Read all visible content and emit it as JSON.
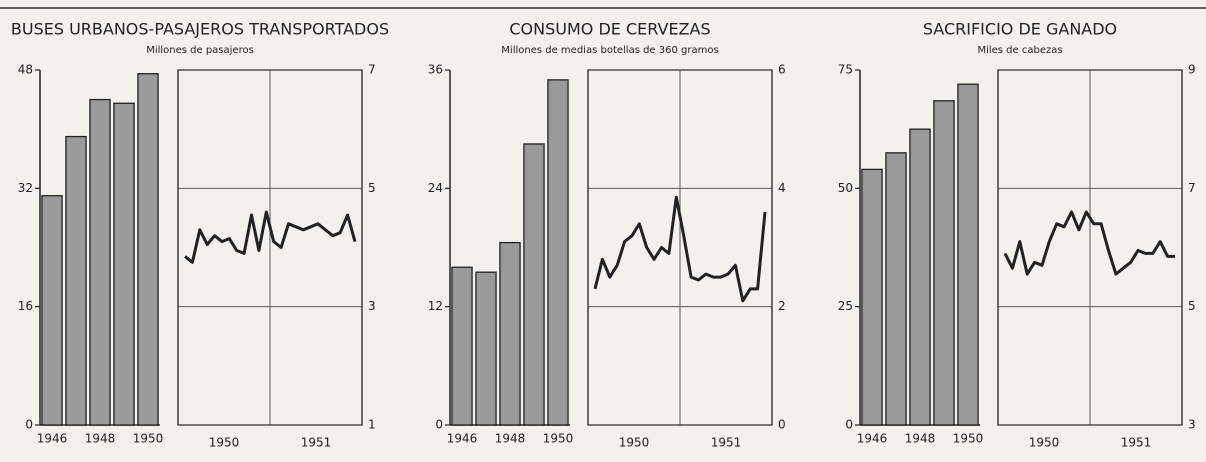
{
  "chart_data": [
    {
      "type": "bar",
      "title": "BUSES URBANOS-PASAJEROS TRANSPORTADOS",
      "subtitle": "Millones de pasajeros",
      "categories": [
        "1946",
        null,
        "1948",
        null,
        "1950"
      ],
      "values": [
        31,
        39,
        44,
        43.5,
        47.5
      ],
      "ylim": [
        0,
        48
      ],
      "yticks": [
        0,
        16,
        32,
        48
      ],
      "color": "#9a9a98",
      "grid": false
    },
    {
      "type": "line",
      "x_groups": [
        "1950",
        "1951"
      ],
      "categories": [
        null,
        null,
        null,
        null,
        null,
        null,
        null,
        null,
        null,
        null,
        null,
        null,
        null,
        null,
        null,
        null,
        null,
        null,
        null,
        null,
        null,
        null,
        null,
        null
      ],
      "values": [
        3.85,
        3.75,
        4.3,
        4.05,
        4.2,
        4.1,
        4.15,
        3.95,
        3.9,
        4.55,
        3.95,
        4.6,
        4.1,
        4.0,
        4.4,
        4.35,
        4.3,
        4.35,
        4.4,
        4.3,
        4.2,
        4.25,
        4.55,
        4.1
      ],
      "y2lim": [
        1,
        7
      ],
      "y2ticks": [
        1,
        3,
        5,
        7
      ],
      "color": "#222222",
      "grid": true
    },
    {
      "type": "bar",
      "title": "CONSUMO DE CERVEZAS",
      "subtitle": "Millones de medias botellas de 360 gramos",
      "categories": [
        "1946",
        null,
        "1948",
        null,
        "1950"
      ],
      "values": [
        16,
        15.5,
        18.5,
        28.5,
        35
      ],
      "ylim": [
        0,
        36
      ],
      "yticks": [
        0,
        12,
        24,
        36
      ],
      "color": "#9a9a98",
      "grid": false
    },
    {
      "type": "line",
      "x_groups": [
        "1950",
        "1951"
      ],
      "categories": [
        null,
        null,
        null,
        null,
        null,
        null,
        null,
        null,
        null,
        null,
        null,
        null,
        null,
        null,
        null,
        null,
        null,
        null,
        null,
        null,
        null,
        null,
        null,
        null
      ],
      "values": [
        2.3,
        2.8,
        2.5,
        2.7,
        3.1,
        3.2,
        3.4,
        3.0,
        2.8,
        3.0,
        2.9,
        3.85,
        3.2,
        2.5,
        2.45,
        2.55,
        2.5,
        2.5,
        2.55,
        2.7,
        2.1,
        2.3,
        2.3,
        3.6
      ],
      "y2lim": [
        0,
        6
      ],
      "y2ticks": [
        0,
        2,
        4,
        6
      ],
      "color": "#222222",
      "grid": true
    },
    {
      "type": "bar",
      "title": "SACRIFICIO DE GANADO",
      "subtitle": "Miles de cabezas",
      "categories": [
        "1946",
        null,
        "1948",
        null,
        "1950"
      ],
      "values": [
        54,
        57.5,
        62.5,
        68.5,
        72
      ],
      "ylim": [
        0,
        75
      ],
      "yticks": [
        0,
        25,
        50,
        75
      ],
      "color": "#9a9a98",
      "grid": false
    },
    {
      "type": "line",
      "x_groups": [
        "1950",
        "1951"
      ],
      "categories": [
        null,
        null,
        null,
        null,
        null,
        null,
        null,
        null,
        null,
        null,
        null,
        null,
        null,
        null,
        null,
        null,
        null,
        null,
        null,
        null,
        null,
        null,
        null,
        null
      ],
      "values": [
        5.9,
        5.65,
        6.1,
        5.55,
        5.75,
        5.7,
        6.1,
        6.4,
        6.35,
        6.6,
        6.3,
        6.6,
        6.4,
        6.4,
        5.95,
        5.55,
        5.65,
        5.75,
        5.95,
        5.9,
        5.9,
        6.1,
        5.85,
        5.85
      ],
      "y2lim": [
        3,
        9
      ],
      "y2ticks": [
        3,
        5,
        7,
        9
      ],
      "color": "#222222",
      "grid": true
    }
  ]
}
